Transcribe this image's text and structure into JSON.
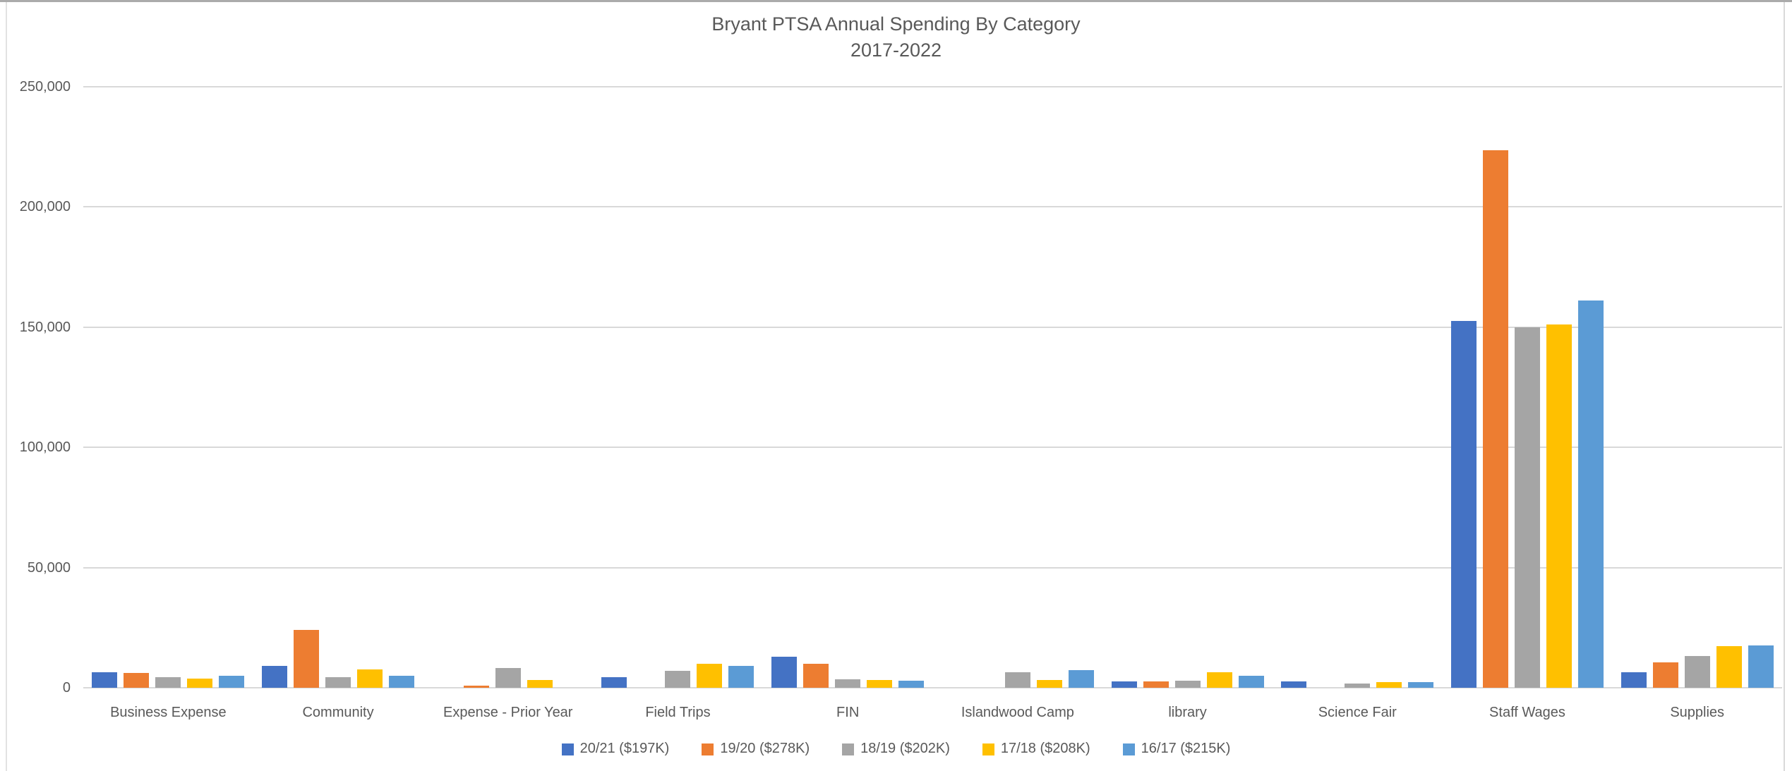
{
  "title": {
    "line1": "Bryant PTSA Annual Spending By Category",
    "line2": "2017-2022",
    "color": "#595959"
  },
  "chart_data": {
    "type": "bar",
    "title": "Bryant PTSA Annual Spending By Category",
    "subtitle": "2017-2022",
    "xlabel": "",
    "ylabel": "",
    "grid": true,
    "legend_position": "bottom",
    "y_axis": {
      "min": 0,
      "max": 250000,
      "step": 50000,
      "tick_labels": [
        "0",
        "50,000",
        "100,000",
        "150,000",
        "200,000",
        "250,000"
      ]
    },
    "categories": [
      "Business Expense",
      "Community",
      "Expense - Prior Year",
      "Field Trips",
      "FIN",
      "Islandwood Camp",
      "library",
      "Science Fair",
      "Staff Wages",
      "Supplies"
    ],
    "series": [
      {
        "name": "20/21 ($197K)",
        "color": "#4472C4",
        "values": [
          6500,
          9000,
          0,
          4500,
          12900,
          0,
          2600,
          2500,
          152500,
          6500
        ]
      },
      {
        "name": "19/20 ($278K)",
        "color": "#ED7D31",
        "values": [
          6300,
          24000,
          900,
          0,
          9900,
          0,
          2600,
          0,
          223500,
          10700
        ]
      },
      {
        "name": "18/19 ($202K)",
        "color": "#A5A5A5",
        "values": [
          4400,
          4300,
          8100,
          7000,
          3500,
          6500,
          2900,
          1800,
          150000,
          13300
        ]
      },
      {
        "name": "17/18 ($208K)",
        "color": "#FFC000",
        "values": [
          3800,
          7500,
          3200,
          9900,
          3300,
          3200,
          6600,
          2300,
          151000,
          17300
        ]
      },
      {
        "name": "16/17 ($215K)",
        "color": "#5B9BD5",
        "values": [
          5000,
          4900,
          0,
          9200,
          2800,
          7200,
          4900,
          2400,
          161000,
          17600
        ]
      }
    ]
  },
  "layout_colors": {
    "gridline": "#d9d9d9",
    "axis_text": "#595959",
    "window_border": "#ababab"
  }
}
